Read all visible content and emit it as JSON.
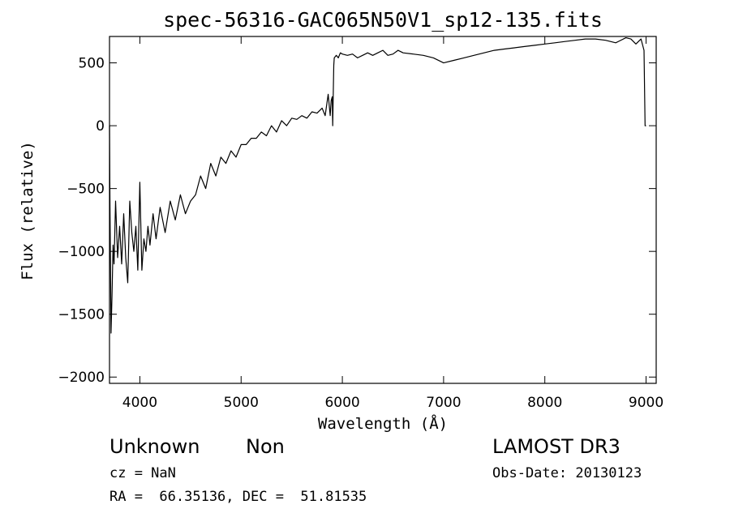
{
  "chart_data": {
    "type": "line",
    "title": "spec-56316-GAC065N50V1_sp12-135.fits",
    "xlabel": "Wavelength (Å)",
    "ylabel": "Flux (relative)",
    "xlim": [
      3700,
      9100
    ],
    "ylim": [
      -2050,
      710
    ],
    "grid": false,
    "legend": "none",
    "x_ticks": [
      {
        "value": 4000,
        "label": "4000"
      },
      {
        "value": 5000,
        "label": "5000"
      },
      {
        "value": 6000,
        "label": "6000"
      },
      {
        "value": 7000,
        "label": "7000"
      },
      {
        "value": 8000,
        "label": "8000"
      },
      {
        "value": 9000,
        "label": "9000"
      }
    ],
    "y_ticks": [
      {
        "value": 500,
        "label": "500"
      },
      {
        "value": 0,
        "label": "0"
      },
      {
        "value": -500,
        "label": "−500"
      },
      {
        "value": -1000,
        "label": "−1000"
      },
      {
        "value": -1500,
        "label": "−1500"
      },
      {
        "value": -2000,
        "label": "−2000"
      }
    ],
    "series": [
      {
        "color": "#000000",
        "x": [
          3700,
          3705,
          3715,
          3725,
          3735,
          3745,
          3760,
          3780,
          3800,
          3820,
          3840,
          3860,
          3880,
          3900,
          3920,
          3940,
          3960,
          3980,
          4000,
          4020,
          4040,
          4060,
          4080,
          4100,
          4130,
          4160,
          4200,
          4250,
          4300,
          4350,
          4400,
          4450,
          4500,
          4550,
          4600,
          4650,
          4700,
          4750,
          4800,
          4850,
          4900,
          4950,
          5000,
          5050,
          5100,
          5150,
          5200,
          5250,
          5300,
          5350,
          5400,
          5450,
          5500,
          5550,
          5600,
          5650,
          5700,
          5750,
          5800,
          5830,
          5860,
          5880,
          5890,
          5900,
          5905,
          5910,
          5915,
          5920,
          5940,
          5960,
          5980,
          6000,
          6050,
          6100,
          6150,
          6200,
          6250,
          6300,
          6350,
          6400,
          6450,
          6500,
          6550,
          6600,
          6700,
          6800,
          6900,
          7000,
          7100,
          7200,
          7300,
          7400,
          7500,
          7600,
          7700,
          7800,
          7900,
          8000,
          8100,
          8200,
          8300,
          8400,
          8500,
          8600,
          8700,
          8800,
          8850,
          8900,
          8950,
          8980,
          8990,
          9000
        ],
        "y": [
          0,
          -650,
          -1650,
          -1350,
          -950,
          -1100,
          -600,
          -1050,
          -800,
          -1100,
          -700,
          -1050,
          -1250,
          -600,
          -850,
          -1000,
          -800,
          -1150,
          -450,
          -1150,
          -900,
          -1000,
          -800,
          -950,
          -700,
          -900,
          -650,
          -850,
          -600,
          -750,
          -550,
          -700,
          -600,
          -550,
          -400,
          -500,
          -300,
          -400,
          -250,
          -300,
          -200,
          -250,
          -150,
          -150,
          -100,
          -100,
          -50,
          -80,
          0,
          -50,
          40,
          0,
          60,
          50,
          80,
          60,
          110,
          100,
          140,
          80,
          250,
          80,
          200,
          230,
          0,
          230,
          480,
          540,
          560,
          540,
          580,
          570,
          560,
          570,
          540,
          560,
          580,
          560,
          580,
          600,
          560,
          570,
          600,
          580,
          570,
          560,
          540,
          500,
          520,
          540,
          560,
          580,
          600,
          610,
          620,
          630,
          640,
          650,
          660,
          670,
          680,
          690,
          690,
          680,
          660,
          700,
          690,
          650,
          690,
          600,
          0,
          0
        ]
      }
    ]
  },
  "footer": {
    "object_class": "Unknown",
    "object_subclass": "Non",
    "cz": "cz = NaN",
    "coords": "RA =  66.35136, DEC =  51.81535",
    "survey": "LAMOST DR3",
    "obs_date": "Obs-Date: 20130123"
  }
}
